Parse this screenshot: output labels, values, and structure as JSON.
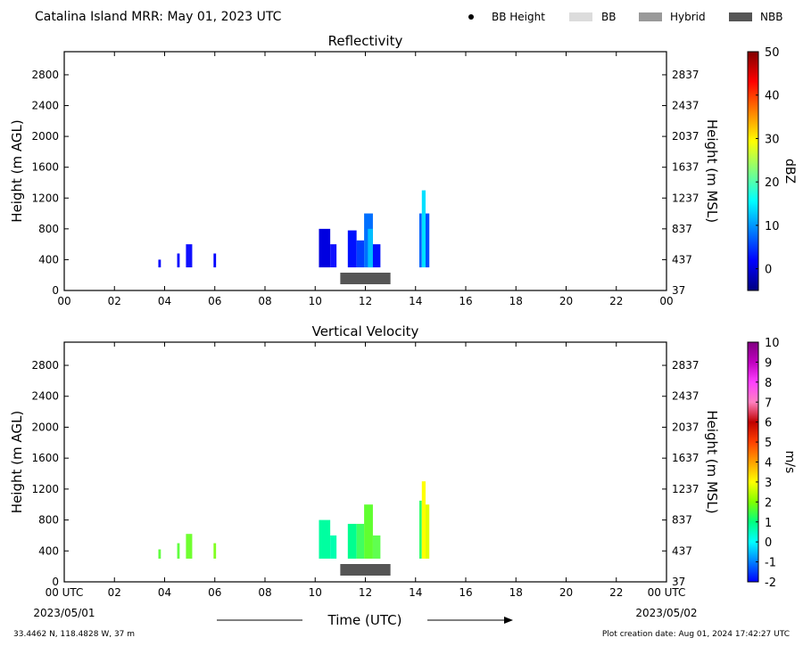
{
  "header": {
    "title": "Catalina Island MRR:  May 01, 2023 UTC",
    "legend": [
      {
        "label": "BB Height",
        "kind": "dot",
        "color": "#000000"
      },
      {
        "label": "BB",
        "kind": "box",
        "color": "#dcdcdc"
      },
      {
        "label": "Hybrid",
        "kind": "box",
        "color": "#999999"
      },
      {
        "label": "NBB",
        "kind": "box",
        "color": "#555555"
      }
    ]
  },
  "footer": {
    "location": "33.4462 N, 118.4828 W, 37 m",
    "created": "Plot creation date: Aug 01, 2024 17:42:27 UTC",
    "xlabel": "Time (UTC)",
    "start_date": "2023/05/01",
    "end_date": "2023/05/02",
    "x_utc_suffix": " UTC"
  },
  "chart_data": [
    {
      "type": "heatmap",
      "title": "Reflectivity",
      "ylabel_left": "Height (m AGL)",
      "ylabel_right": "Height (m MSL)",
      "x_ticks": [
        "00",
        "02",
        "04",
        "06",
        "08",
        "10",
        "12",
        "14",
        "16",
        "18",
        "20",
        "22",
        "00"
      ],
      "xlim": [
        0,
        24
      ],
      "ylim": [
        0,
        3100
      ],
      "y_ticks_left": [
        0,
        400,
        800,
        1200,
        1600,
        2000,
        2400,
        2800
      ],
      "y_ticks_right": [
        37,
        437,
        837,
        1237,
        1637,
        2037,
        2437,
        2837
      ],
      "colorbar": {
        "label": "dBZ",
        "range": [
          -5,
          50
        ],
        "ticks": [
          0,
          10,
          20,
          30,
          40,
          50
        ],
        "colors": [
          "#000080",
          "#0000ff",
          "#0080ff",
          "#00ffff",
          "#80ff80",
          "#ffff00",
          "#ff8000",
          "#ff0000",
          "#800000"
        ]
      },
      "bright_band": [
        {
          "type": "NBB",
          "start": 11.0,
          "end": 13.0,
          "color": "#555555"
        }
      ],
      "columns": [
        {
          "t0": 3.75,
          "t1": 3.85,
          "bottom": 300,
          "top": 400,
          "value": 2,
          "color": "#0000ff"
        },
        {
          "t0": 4.5,
          "t1": 4.6,
          "bottom": 300,
          "top": 480,
          "value": 2,
          "color": "#0000ff"
        },
        {
          "t0": 4.85,
          "t1": 5.1,
          "bottom": 300,
          "top": 600,
          "value": 3,
          "color": "#1010ff"
        },
        {
          "t0": 5.95,
          "t1": 6.05,
          "bottom": 300,
          "top": 480,
          "value": 2,
          "color": "#0000ff"
        },
        {
          "t0": 10.15,
          "t1": 10.6,
          "bottom": 300,
          "top": 800,
          "value": 1,
          "color": "#0000e0"
        },
        {
          "t0": 10.6,
          "t1": 10.85,
          "bottom": 300,
          "top": 600,
          "value": 3,
          "color": "#1010ff"
        },
        {
          "t0": 11.3,
          "t1": 11.65,
          "bottom": 300,
          "top": 780,
          "value": 3,
          "color": "#0010ff"
        },
        {
          "t0": 11.65,
          "t1": 11.95,
          "bottom": 300,
          "top": 650,
          "value": 5,
          "color": "#0040ff"
        },
        {
          "t0": 11.95,
          "t1": 12.3,
          "bottom": 300,
          "top": 1000,
          "value": 7,
          "color": "#0070ff"
        },
        {
          "t0": 12.1,
          "t1": 12.3,
          "bottom": 300,
          "top": 800,
          "value": 10,
          "color": "#00c0ff"
        },
        {
          "t0": 12.3,
          "t1": 12.6,
          "bottom": 300,
          "top": 600,
          "value": 3,
          "color": "#0010ff"
        },
        {
          "t0": 14.15,
          "t1": 14.25,
          "bottom": 300,
          "top": 1000,
          "value": 5,
          "color": "#0060ff"
        },
        {
          "t0": 14.25,
          "t1": 14.4,
          "bottom": 300,
          "top": 1300,
          "value": 12,
          "color": "#00e0ff"
        },
        {
          "t0": 14.4,
          "t1": 14.55,
          "bottom": 300,
          "top": 1000,
          "value": 6,
          "color": "#0050ff"
        }
      ]
    },
    {
      "type": "heatmap",
      "title": "Vertical Velocity",
      "ylabel_left": "Height (m AGL)",
      "ylabel_right": "Height (m MSL)",
      "x_ticks": [
        "00",
        "02",
        "04",
        "06",
        "08",
        "10",
        "12",
        "14",
        "16",
        "18",
        "20",
        "22",
        "00"
      ],
      "xlim": [
        0,
        24
      ],
      "ylim": [
        0,
        3100
      ],
      "y_ticks_left": [
        0,
        400,
        800,
        1200,
        1600,
        2000,
        2400,
        2800
      ],
      "y_ticks_right": [
        37,
        437,
        837,
        1237,
        1637,
        2037,
        2437,
        2837
      ],
      "colorbar": {
        "label": "m/s",
        "range": [
          -2,
          10
        ],
        "ticks": [
          -2,
          -1,
          0,
          1,
          2,
          3,
          4,
          5,
          6,
          7,
          8,
          9,
          10
        ],
        "colors": [
          "#0000ff",
          "#0080ff",
          "#00ffff",
          "#00ff80",
          "#80ff00",
          "#ffff00",
          "#ffa000",
          "#ff4000",
          "#c00000",
          "#ff80c0",
          "#ff40ff",
          "#c000c0",
          "#800080"
        ]
      },
      "bright_band": [
        {
          "type": "NBB",
          "start": 11.0,
          "end": 13.0,
          "color": "#555555"
        }
      ],
      "columns": [
        {
          "t0": 3.75,
          "t1": 3.85,
          "bottom": 300,
          "top": 420,
          "value": 1.5,
          "color": "#60ff40"
        },
        {
          "t0": 4.5,
          "t1": 4.6,
          "bottom": 300,
          "top": 500,
          "value": 1.5,
          "color": "#60ff40"
        },
        {
          "t0": 4.85,
          "t1": 5.1,
          "bottom": 300,
          "top": 620,
          "value": 1.5,
          "color": "#70ff30"
        },
        {
          "t0": 5.95,
          "t1": 6.05,
          "bottom": 300,
          "top": 500,
          "value": 1.5,
          "color": "#80ff20"
        },
        {
          "t0": 10.15,
          "t1": 10.6,
          "bottom": 300,
          "top": 800,
          "value": 0.5,
          "color": "#00ffa0"
        },
        {
          "t0": 10.6,
          "t1": 10.85,
          "bottom": 300,
          "top": 600,
          "value": 0.5,
          "color": "#00ffb0"
        },
        {
          "t0": 11.3,
          "t1": 11.65,
          "bottom": 300,
          "top": 750,
          "value": 0.7,
          "color": "#00ff90"
        },
        {
          "t0": 11.65,
          "t1": 11.95,
          "bottom": 300,
          "top": 750,
          "value": 1,
          "color": "#40ff60"
        },
        {
          "t0": 11.95,
          "t1": 12.3,
          "bottom": 300,
          "top": 1000,
          "value": 1.5,
          "color": "#60ff30"
        },
        {
          "t0": 12.3,
          "t1": 12.6,
          "bottom": 300,
          "top": 600,
          "value": 1.2,
          "color": "#60ff50"
        },
        {
          "t0": 14.15,
          "t1": 14.25,
          "bottom": 300,
          "top": 1050,
          "value": 1,
          "color": "#30ff70"
        },
        {
          "t0": 14.25,
          "t1": 14.4,
          "bottom": 300,
          "top": 1300,
          "value": 3,
          "color": "#ffff00"
        },
        {
          "t0": 14.4,
          "t1": 14.55,
          "bottom": 300,
          "top": 1000,
          "value": 2.5,
          "color": "#e0ff00"
        }
      ]
    }
  ]
}
